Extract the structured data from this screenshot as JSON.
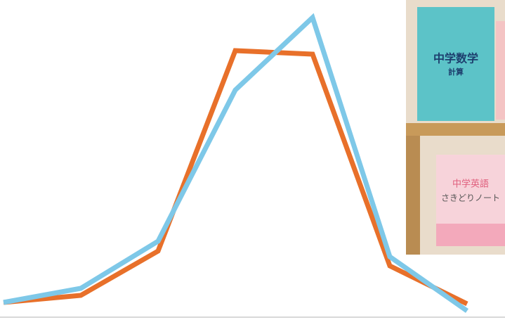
{
  "chart_data": {
    "type": "line",
    "categories": [
      null,
      null,
      null,
      null,
      null,
      null,
      null
    ],
    "series": [
      {
        "color": "#e8702a",
        "values": [
          25,
          35,
          98,
          383,
          378,
          77,
          23
        ]
      },
      {
        "color": "#7ec8e8",
        "values": [
          25,
          45,
          112,
          327,
          430,
          90,
          13
        ]
      }
    ],
    "ylim": [
      0,
      455
    ]
  },
  "photo": {
    "texts": [
      "中学数学",
      "計算",
      "中学英語",
      "さきどりノート"
    ]
  }
}
